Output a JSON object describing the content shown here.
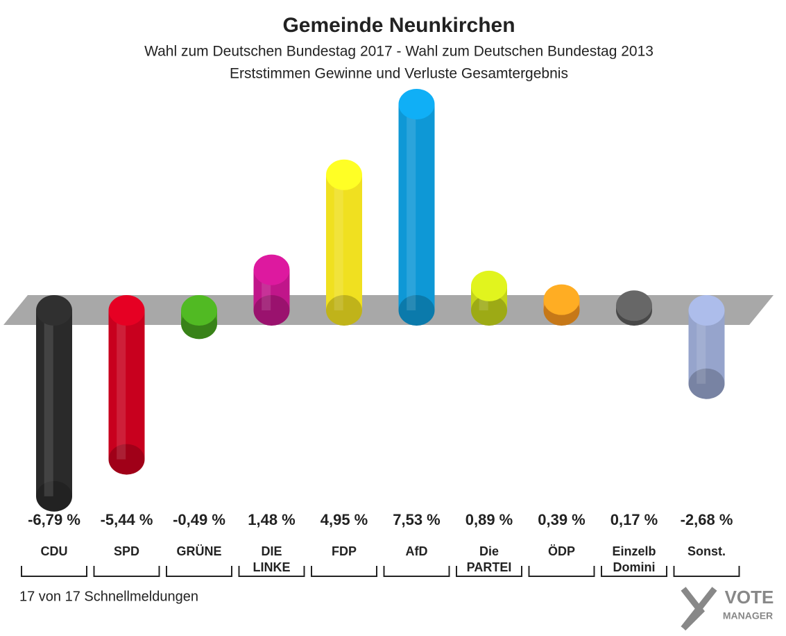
{
  "chart_data": {
    "type": "bar",
    "title": "Gemeinde Neunkirchen",
    "subtitle": [
      "Wahl zum Deutschen Bundestag 2017 - Wahl zum Deutschen Bundestag 2013",
      "Erststimmen Gewinne und Verluste Gesamtergebnis"
    ],
    "categories": [
      "CDU",
      "SPD",
      "GRÜNE",
      "DIE LINKE",
      "FDP",
      "AfD",
      "Die PARTEI",
      "ÖDP",
      "Einzelb Domini",
      "Sonst."
    ],
    "values": [
      -6.79,
      -5.44,
      -0.49,
      1.48,
      4.95,
      7.53,
      0.89,
      0.39,
      0.17,
      -2.68
    ],
    "value_labels": [
      "-6,79 %",
      "-5,44 %",
      "-0,49 %",
      "1,48 %",
      "4,95 %",
      "7,53 %",
      "0,89 %",
      "0,39 %",
      "0,17 %",
      "-2,68 %"
    ],
    "colors": [
      "#2a2a2a",
      "#c8001e",
      "#46a21e",
      "#c0168a",
      "#f0e020",
      "#0e98d6",
      "#c4d41a",
      "#f7961e",
      "#5a5a5a",
      "#96a4cc"
    ],
    "footnote": "17 von 17 Schnellmeldungen",
    "logo": [
      "VOTE",
      "MANAGER"
    ]
  }
}
